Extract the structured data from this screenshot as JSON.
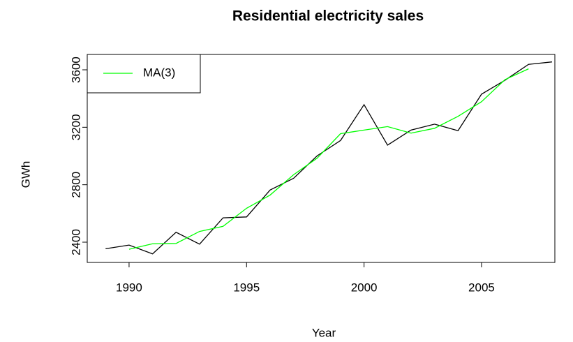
{
  "chart_data": {
    "type": "line",
    "title": "Residential electricity sales",
    "x_label": "Year",
    "y_label": "GWh",
    "x": [
      1989,
      1990,
      1991,
      1992,
      1993,
      1994,
      1995,
      1996,
      1997,
      1998,
      1999,
      2000,
      2001,
      2002,
      2003,
      2004,
      2005,
      2006,
      2007,
      2008
    ],
    "series": [
      {
        "color": "#000000",
        "values": [
          2354.34,
          2379.71,
          2318.52,
          2468.99,
          2386.09,
          2569.47,
          2575.72,
          2762.72,
          2844.5,
          3000.7,
          3108.1,
          3357.5,
          3075.7,
          3180.6,
          3221.6,
          3176.2,
          3430.6,
          3527.48,
          3637.89,
          3655.0
        ]
      },
      {
        "name": "MA(3)",
        "color": "#00ff00",
        "values": [
          null,
          2350.86,
          2389.07,
          2391.2,
          2474.85,
          2510.43,
          2635.97,
          2727.65,
          2869.31,
          2984.43,
          3155.43,
          3180.43,
          3204.6,
          3159.3,
          3192.8,
          3276.13,
          3378.09,
          3531.99,
          3606.79,
          null
        ]
      }
    ],
    "xlim": [
      1988.22,
      2008.12
    ],
    "xticks": [
      1990,
      1995,
      2000,
      2005
    ],
    "ylim": [
      2259,
      3707
    ],
    "yticks": [
      2400,
      2800,
      3200,
      3600
    ],
    "legend": "top-left"
  }
}
